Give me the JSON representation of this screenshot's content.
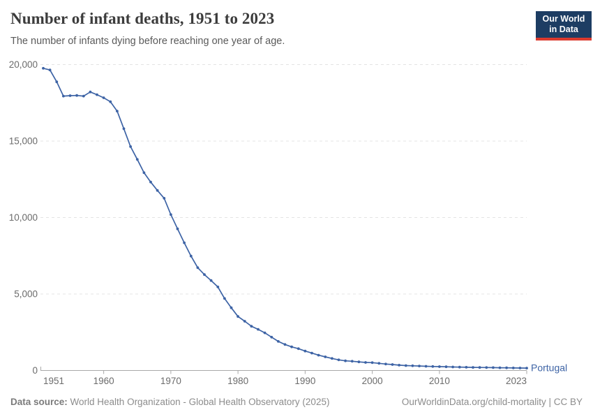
{
  "header": {
    "title": "Number of infant deaths, 1951 to 2023",
    "subtitle": "The number of infants dying before reaching one year of age.",
    "logo": {
      "line1": "Our World",
      "line2": "in Data",
      "bg_color": "#1d3d63",
      "accent_color": "#dc3a2e"
    }
  },
  "chart_data": {
    "type": "line",
    "title": "Number of infant deaths, 1951 to 2023",
    "xlabel": "",
    "ylabel": "",
    "xlim": [
      1951,
      2023
    ],
    "ylim": [
      0,
      20000
    ],
    "grid": "horizontal-dashed",
    "legend": "end-of-line-label",
    "x_ticks": [
      1951,
      1960,
      1970,
      1980,
      1990,
      2000,
      2010,
      2023
    ],
    "x_tick_labels": [
      "1951",
      "1960",
      "1970",
      "1980",
      "1990",
      "2000",
      "2010",
      "2023"
    ],
    "y_ticks": [
      0,
      5000,
      10000,
      15000,
      20000
    ],
    "y_tick_labels": [
      "0",
      "5,000",
      "10,000",
      "15,000",
      "20,000"
    ],
    "colors": {
      "grid": "#e3e3e3",
      "axis": "#a8a8a8",
      "tick_label": "#6b6b6b"
    },
    "series": [
      {
        "name": "Portugal",
        "color": "#3d63a5",
        "x": [
          1951,
          1952,
          1953,
          1954,
          1955,
          1956,
          1957,
          1958,
          1959,
          1960,
          1961,
          1962,
          1963,
          1964,
          1965,
          1966,
          1967,
          1968,
          1969,
          1970,
          1971,
          1972,
          1973,
          1974,
          1975,
          1976,
          1977,
          1978,
          1979,
          1980,
          1981,
          1982,
          1983,
          1984,
          1985,
          1986,
          1987,
          1988,
          1989,
          1990,
          1991,
          1992,
          1993,
          1994,
          1995,
          1996,
          1997,
          1998,
          1999,
          2000,
          2001,
          2002,
          2003,
          2004,
          2005,
          2006,
          2007,
          2008,
          2009,
          2010,
          2011,
          2012,
          2013,
          2014,
          2015,
          2016,
          2017,
          2018,
          2019,
          2020,
          2021,
          2022,
          2023
        ],
        "values": [
          19760,
          19650,
          18870,
          17940,
          17970,
          17980,
          17940,
          18210,
          18030,
          17830,
          17570,
          16960,
          15810,
          14640,
          13800,
          12930,
          12320,
          11770,
          11260,
          10190,
          9260,
          8350,
          7480,
          6720,
          6270,
          5880,
          5460,
          4710,
          4100,
          3530,
          3220,
          2890,
          2690,
          2460,
          2180,
          1900,
          1700,
          1545,
          1425,
          1270,
          1135,
          1000,
          890,
          785,
          695,
          630,
          605,
          560,
          525,
          510,
          465,
          420,
          390,
          345,
          320,
          305,
          290,
          275,
          260,
          250,
          240,
          230,
          220,
          210,
          200,
          195,
          190,
          185,
          180,
          172,
          165,
          158,
          155
        ]
      }
    ]
  },
  "footer": {
    "datasource_label": "Data source:",
    "datasource_text": " World Health Organization - Global Health Observatory (2025)",
    "link_text": "OurWorldinData.org/child-mortality | CC BY"
  }
}
